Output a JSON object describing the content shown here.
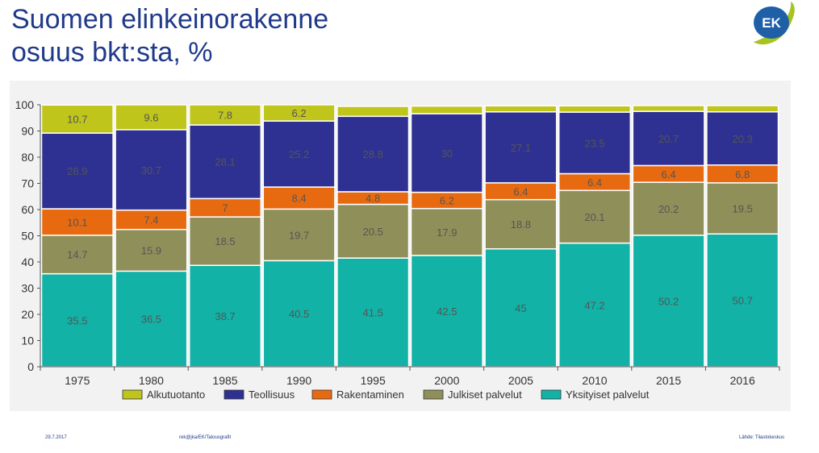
{
  "header": {
    "title_line1": "Suomen elinkeinorakenne",
    "title_line2": "osuus bkt:sta, %",
    "logo_text": "EK"
  },
  "footer": {
    "date": "29.7.2017",
    "credit": "rek@jka/EK/Talousgrafit",
    "source": "Lähde: Tilastokeskus"
  },
  "colors": {
    "Alkutuotanto": "#bfc51a",
    "Teollisuus": "#2e3191",
    "Rakentaminen": "#e86a10",
    "Julkiset palvelut": "#8f8f5a",
    "Yksityiset palvelut": "#12b2a6"
  },
  "chart_data": {
    "type": "bar",
    "stacked": true,
    "categories": [
      "1975",
      "1980",
      "1985",
      "1990",
      "1995",
      "2000",
      "2005",
      "2010",
      "2015",
      "2016"
    ],
    "ylim": [
      0,
      100
    ],
    "yticks": [
      0,
      10,
      20,
      30,
      40,
      50,
      60,
      70,
      80,
      90,
      100
    ],
    "legend_position": "bottom",
    "series": [
      {
        "name": "Yksityiset palvelut",
        "values": [
          35.5,
          36.5,
          38.7,
          40.5,
          41.5,
          42.5,
          45,
          47.2,
          50.2,
          50.7
        ],
        "labels": [
          "35.5",
          "36.5",
          "38.7",
          "40.5",
          "41.5",
          "42.5",
          "45",
          "47.2",
          "50.2",
          "50.7"
        ]
      },
      {
        "name": "Julkiset palvelut",
        "values": [
          14.7,
          15.9,
          18.5,
          19.7,
          20.5,
          17.9,
          18.8,
          20.1,
          20.2,
          19.5
        ],
        "labels": [
          "14.7",
          "15.9",
          "18.5",
          "19.7",
          "20.5",
          "17.9",
          "18.8",
          "20.1",
          "20.2",
          "19.5"
        ]
      },
      {
        "name": "Rakentaminen",
        "values": [
          10.1,
          7.4,
          7,
          8.4,
          4.8,
          6.2,
          6.4,
          6.4,
          6.4,
          6.8
        ],
        "labels": [
          "10.1",
          "7.4",
          "7",
          "8.4",
          "4.8",
          "6.2",
          "6.4",
          "6.4",
          "6.4",
          "6.8"
        ]
      },
      {
        "name": "Teollisuus",
        "values": [
          28.9,
          30.7,
          28.1,
          25.2,
          28.8,
          30,
          27.1,
          23.5,
          20.7,
          20.3
        ],
        "labels": [
          "28.9",
          "30.7",
          "28.1",
          "25.2",
          "28.8",
          "30",
          "27.1",
          "23.5",
          "20.7",
          "20.3"
        ]
      },
      {
        "name": "Alkutuotanto",
        "values": [
          10.7,
          9.6,
          7.8,
          6.2,
          3.8,
          2.9,
          2.3,
          2.4,
          2.2,
          2.4
        ],
        "labels": [
          "10.7",
          "9.6",
          "7.8",
          "6.2",
          "",
          "",
          "",
          "",
          "",
          ""
        ]
      }
    ],
    "legend_order": [
      "Alkutuotanto",
      "Teollisuus",
      "Rakentaminen",
      "Julkiset palvelut",
      "Yksityiset palvelut"
    ]
  }
}
